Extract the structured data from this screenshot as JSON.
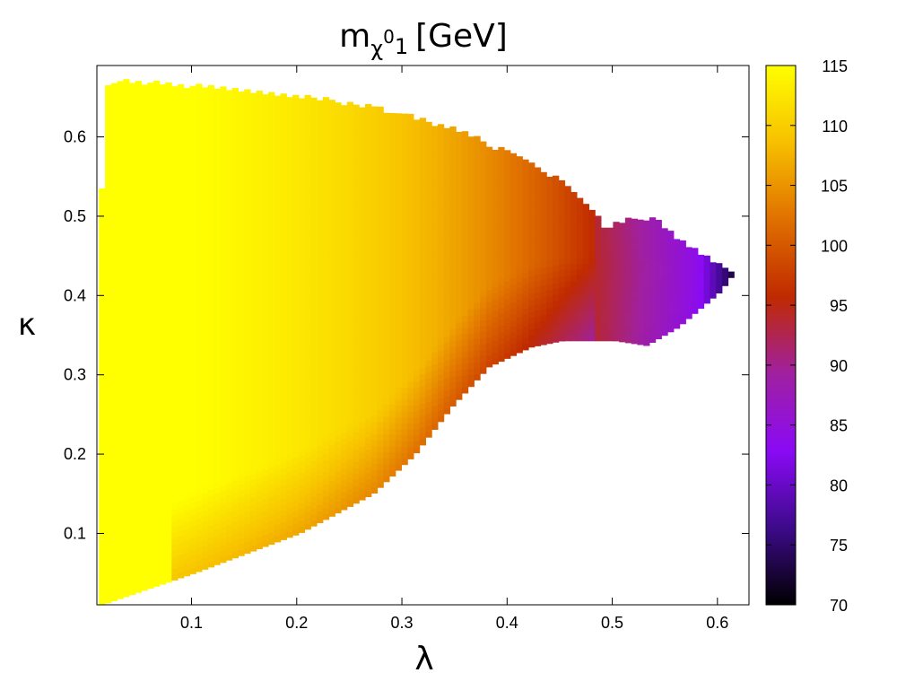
{
  "chart_data": {
    "type": "heatmap",
    "title": {
      "base": "m",
      "sub_symbol": "χ",
      "sup": "0",
      "sub_index": "1",
      "unit": "[GeV]"
    },
    "xlabel": "λ",
    "ylabel": "κ",
    "xlim": [
      0.01,
      0.63
    ],
    "ylim": [
      0.01,
      0.69
    ],
    "xticks": [
      0.1,
      0.2,
      0.3,
      0.4,
      0.5,
      0.6
    ],
    "yticks": [
      0.1,
      0.2,
      0.3,
      0.4,
      0.5,
      0.6
    ],
    "grid": false,
    "colorbar": {
      "label_values": [
        70,
        75,
        80,
        85,
        90,
        95,
        100,
        105,
        110,
        115
      ],
      "range": [
        70,
        115
      ],
      "colormap": [
        "#000000",
        "#3d0a8a",
        "#8a0af5",
        "#a020a0",
        "#c02a00",
        "#e07000",
        "#f7c000",
        "#ffff00"
      ]
    },
    "region": {
      "upper_boundary": [
        [
          0.012,
          0.53
        ],
        [
          0.018,
          0.666
        ],
        [
          0.05,
          0.666
        ],
        [
          0.1,
          0.66
        ],
        [
          0.15,
          0.655
        ],
        [
          0.2,
          0.648
        ],
        [
          0.25,
          0.638
        ],
        [
          0.3,
          0.625
        ],
        [
          0.35,
          0.605
        ],
        [
          0.4,
          0.575
        ],
        [
          0.45,
          0.54
        ],
        [
          0.48,
          0.5
        ],
        [
          0.49,
          0.48
        ],
        [
          0.5,
          0.487
        ],
        [
          0.52,
          0.497
        ],
        [
          0.54,
          0.49
        ],
        [
          0.56,
          0.468
        ],
        [
          0.6,
          0.435
        ],
        [
          0.613,
          0.428
        ]
      ],
      "lower_boundary": [
        [
          0.012,
          0.01
        ],
        [
          0.1,
          0.05
        ],
        [
          0.2,
          0.1
        ],
        [
          0.27,
          0.15
        ],
        [
          0.31,
          0.2
        ],
        [
          0.345,
          0.26
        ],
        [
          0.38,
          0.31
        ],
        [
          0.42,
          0.335
        ],
        [
          0.45,
          0.343
        ],
        [
          0.48,
          0.343
        ],
        [
          0.5,
          0.343
        ],
        [
          0.53,
          0.337
        ],
        [
          0.56,
          0.36
        ],
        [
          0.6,
          0.405
        ],
        [
          0.613,
          0.428
        ]
      ]
    },
    "color_model": "m = 116 - 12*((λ-0.012)/(λ_max(κ)-0.012))^1.6 - 12*((λ-0.012)/(λ_max(κ)-0.012))^4 in the yellow-to-red region; m ≈ 78-88 in the purple lobe for λ > 0.48, κ 0.34-0.50, dropping to ≈ 72 at the tip (λ ≈ 0.61)",
    "sample_values": [
      {
        "x": 0.05,
        "y": 0.5,
        "v": 115
      },
      {
        "x": 0.2,
        "y": 0.5,
        "v": 112
      },
      {
        "x": 0.35,
        "y": 0.5,
        "v": 106
      },
      {
        "x": 0.45,
        "y": 0.45,
        "v": 98
      },
      {
        "x": 0.52,
        "y": 0.42,
        "v": 84
      },
      {
        "x": 0.58,
        "y": 0.42,
        "v": 78
      },
      {
        "x": 0.61,
        "y": 0.43,
        "v": 71
      },
      {
        "x": 0.3,
        "y": 0.2,
        "v": 100
      },
      {
        "x": 0.15,
        "y": 0.1,
        "v": 104
      },
      {
        "x": 0.05,
        "y": 0.05,
        "v": 115
      }
    ]
  }
}
